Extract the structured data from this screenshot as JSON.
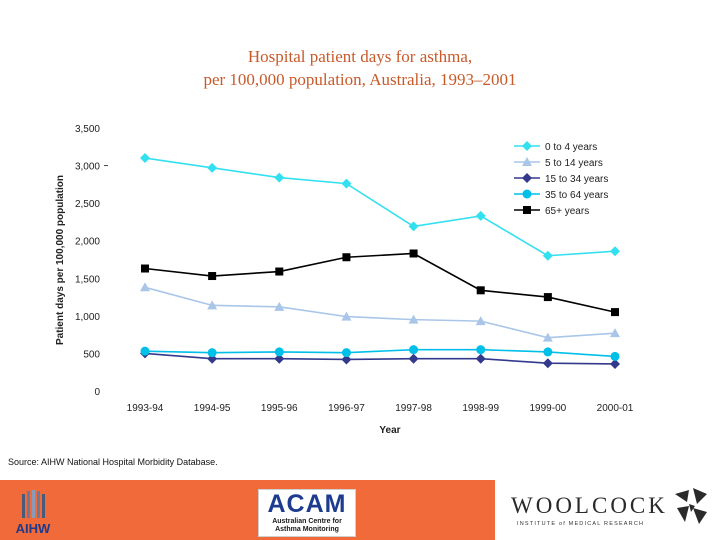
{
  "chart_data": {
    "type": "line",
    "title": [
      "Hospital patient days for asthma,",
      "per 100,000 population, Australia, 1993–2001"
    ],
    "xlabel": "Year",
    "ylabel": "Patient days per 100,000 population",
    "ylim": [
      0,
      3500
    ],
    "yticks": [
      0,
      500,
      1000,
      1500,
      2000,
      2500,
      3000,
      3500
    ],
    "ytick_labels": [
      "0",
      "500",
      "1,000",
      "1,500",
      "2,000",
      "2,500",
      "3,000",
      "3,500"
    ],
    "categories": [
      "1993-94",
      "1994-95",
      "1995-96",
      "1996-97",
      "1997-98",
      "1998-99",
      "1999-00",
      "2000-01"
    ],
    "series": [
      {
        "name": "0 to 4 years",
        "color": "#33e0f0",
        "marker": "diamond",
        "values": [
          3100,
          2970,
          2840,
          2760,
          2190,
          2330,
          1800,
          1860
        ]
      },
      {
        "name": "5 to 14 years",
        "color": "#a9c6e8",
        "marker": "triangle",
        "values": [
          1380,
          1140,
          1120,
          990,
          950,
          930,
          710,
          770
        ]
      },
      {
        "name": "15 to 34 years",
        "color": "#333a8c",
        "marker": "diamond",
        "values": [
          500,
          430,
          430,
          420,
          430,
          430,
          370,
          360
        ]
      },
      {
        "name": "35 to 64 years",
        "color": "#00bfe8",
        "marker": "circle",
        "values": [
          530,
          510,
          520,
          510,
          550,
          550,
          520,
          460
        ]
      },
      {
        "name": "65+ years",
        "color": "#000000",
        "marker": "square",
        "values": [
          1630,
          1530,
          1590,
          1780,
          1830,
          1340,
          1250,
          1050
        ]
      }
    ],
    "grid": false,
    "legend_position": "top-right"
  },
  "source": "Source: AIHW National Hospital Morbidity Database.",
  "footer": {
    "background": "#f06a3a",
    "aihw_label": "AIHW",
    "acam_label": "ACAM",
    "acam_subtitle": "Australian Centre for Asthma Monitoring",
    "woolcock_label": "WOOLCOCK",
    "woolcock_subtitle": "INSTITUTE of MEDICAL RESEARCH"
  }
}
